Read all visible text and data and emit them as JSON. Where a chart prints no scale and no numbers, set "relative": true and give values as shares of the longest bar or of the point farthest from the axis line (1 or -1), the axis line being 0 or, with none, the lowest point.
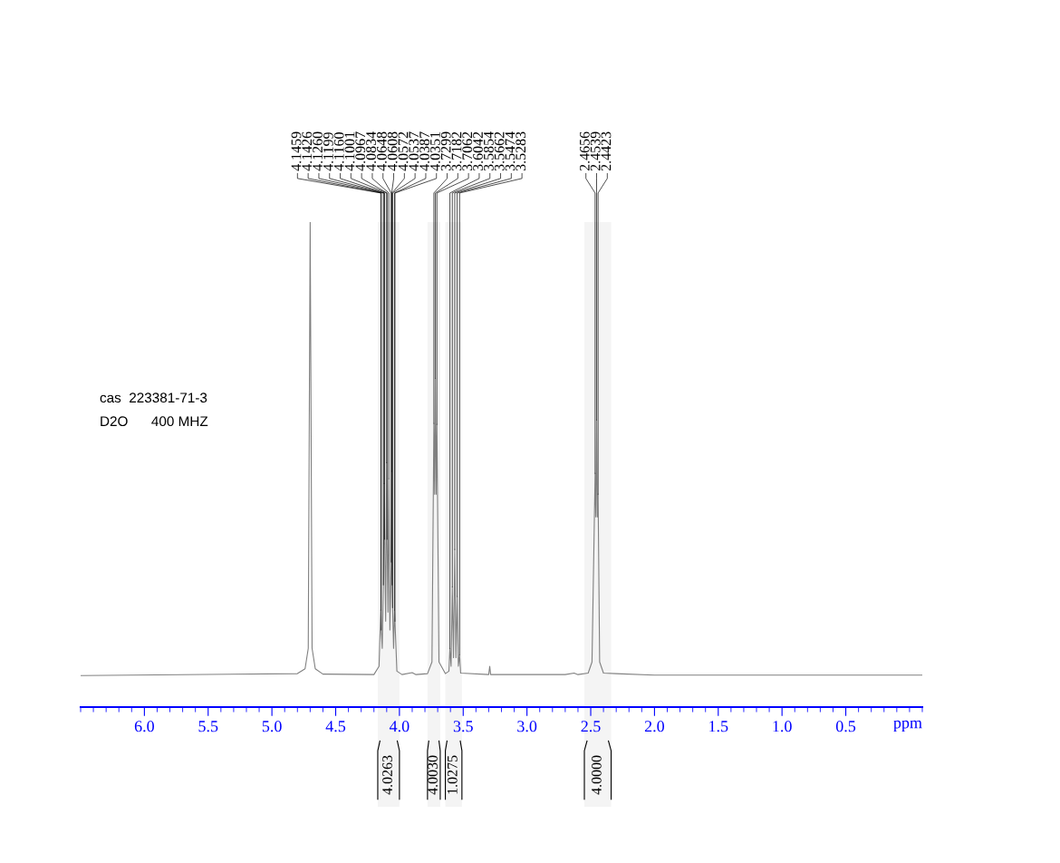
{
  "chart_data": {
    "type": "line",
    "xlabel": "ppm",
    "relative": true,
    "marker": "none",
    "xlim": [
      6.5,
      -0.1
    ],
    "xticks": [
      {
        "value": 6,
        "label": "6.0"
      },
      {
        "value": 5.5,
        "label": "5.5"
      },
      {
        "value": 5,
        "label": "5.0"
      },
      {
        "value": 4.5,
        "label": "4.5"
      },
      {
        "value": 4,
        "label": "4.0"
      },
      {
        "value": 3.5,
        "label": "3.5"
      },
      {
        "value": 3,
        "label": "3.0"
      },
      {
        "value": 2.5,
        "label": "2.5"
      },
      {
        "value": 2,
        "label": "2.0"
      },
      {
        "value": 1.5,
        "label": "1.5"
      },
      {
        "value": 1,
        "label": "1.0"
      },
      {
        "value": 0.5,
        "label": "0.5"
      }
    ],
    "x": [
      6.5,
      4.8,
      4.74,
      4.715,
      4.7,
      4.685,
      4.66,
      4.6,
      4.2,
      4.16,
      4.1459,
      4.1426,
      4.135,
      4.126,
      4.1199,
      4.116,
      4.108,
      4.1001,
      4.0967,
      4.09,
      4.0834,
      4.075,
      4.0648,
      4.0608,
      4.0572,
      4.0537,
      4.046,
      4.0387,
      4.0351,
      4.02,
      3.98,
      3.9,
      3.87,
      3.78,
      3.745,
      3.7299,
      3.724,
      3.7182,
      3.712,
      3.7062,
      3.69,
      3.64,
      3.612,
      3.6042,
      3.595,
      3.5854,
      3.576,
      3.5662,
      3.557,
      3.5474,
      3.538,
      3.5283,
      3.52,
      3.3,
      3.292,
      3.285,
      2.7,
      2.63,
      2.6,
      2.52,
      2.49,
      2.4656,
      2.46,
      2.4539,
      2.448,
      2.4423,
      2.43,
      2.4,
      2.3,
      2.0,
      -0.1
    ],
    "series": [
      {
        "color": "#808080",
        "values": [
          0.065,
          0.069,
          0.079,
          0.121,
          1.0,
          0.121,
          0.079,
          0.068,
          0.067,
          0.084,
          0.2,
          0.159,
          0.121,
          0.252,
          0.461,
          0.346,
          0.177,
          0.504,
          0.346,
          0.196,
          0.471,
          0.159,
          0.299,
          0.486,
          0.252,
          0.205,
          0.121,
          0.2,
          0.177,
          0.074,
          0.067,
          0.071,
          0.067,
          0.069,
          0.093,
          0.585,
          0.439,
          0.678,
          0.439,
          0.583,
          0.093,
          0.069,
          0.074,
          0.121,
          0.084,
          0.248,
          0.102,
          0.325,
          0.102,
          0.228,
          0.084,
          0.108,
          0.07,
          0.067,
          0.084,
          0.067,
          0.067,
          0.07,
          0.067,
          0.07,
          0.093,
          0.482,
          0.392,
          0.592,
          0.392,
          0.439,
          0.093,
          0.07,
          0.069,
          0.066,
          0.066
        ]
      }
    ],
    "bands": [
      {
        "axis": "x",
        "from": 4.17,
        "to": 4.0,
        "label": "4.0263",
        "color": "#f4f4f4"
      },
      {
        "axis": "x",
        "from": 3.78,
        "to": 3.68,
        "label": "4.0030",
        "color": "#f4f4f4"
      },
      {
        "axis": "x",
        "from": 3.64,
        "to": 3.51,
        "label": "1.0275",
        "color": "#f4f4f4"
      },
      {
        "axis": "x",
        "from": 2.55,
        "to": 2.34,
        "label": "4.0000",
        "color": "#f4f4f4"
      }
    ],
    "annotations": [
      {
        "text": "4.1459",
        "x": 4.1459,
        "y": 0.2
      },
      {
        "text": "4.1426",
        "x": 4.1426,
        "y": 0.159
      },
      {
        "text": "4.1260",
        "x": 4.126,
        "y": 0.252
      },
      {
        "text": "4.1199",
        "x": 4.1199,
        "y": 0.461
      },
      {
        "text": "4.1160",
        "x": 4.116,
        "y": 0.346
      },
      {
        "text": "4.1001",
        "x": 4.1001,
        "y": 0.504
      },
      {
        "text": "4.0967",
        "x": 4.0967,
        "y": 0.346
      },
      {
        "text": "4.0834",
        "x": 4.0834,
        "y": 0.471
      },
      {
        "text": "4.0648",
        "x": 4.0648,
        "y": 0.299
      },
      {
        "text": "4.0608",
        "x": 4.0608,
        "y": 0.486
      },
      {
        "text": "4.0572",
        "x": 4.0572,
        "y": 0.252
      },
      {
        "text": "4.0537",
        "x": 4.0537,
        "y": 0.205
      },
      {
        "text": "4.0387",
        "x": 4.0387,
        "y": 0.2
      },
      {
        "text": "4.0351",
        "x": 4.0351,
        "y": 0.177
      },
      {
        "text": "3.7299",
        "x": 3.7299,
        "y": 0.585
      },
      {
        "text": "3.7182",
        "x": 3.7182,
        "y": 0.678
      },
      {
        "text": "3.7062",
        "x": 3.7062,
        "y": 0.583
      },
      {
        "text": "3.6042",
        "x": 3.6042,
        "y": 0.121
      },
      {
        "text": "3.5854",
        "x": 3.5854,
        "y": 0.248
      },
      {
        "text": "3.5662",
        "x": 3.5662,
        "y": 0.325
      },
      {
        "text": "3.5474",
        "x": 3.5474,
        "y": 0.228
      },
      {
        "text": "3.5283",
        "x": 3.5283,
        "y": 0.108
      },
      {
        "text": "2.4656",
        "x": 2.4656,
        "y": 0.482
      },
      {
        "text": "2.4539",
        "x": 2.4539,
        "y": 0.592
      },
      {
        "text": "2.4423",
        "x": 2.4423,
        "y": 0.439
      },
      "cas  223381-71-3",
      "D2O      400 MHZ"
    ]
  }
}
